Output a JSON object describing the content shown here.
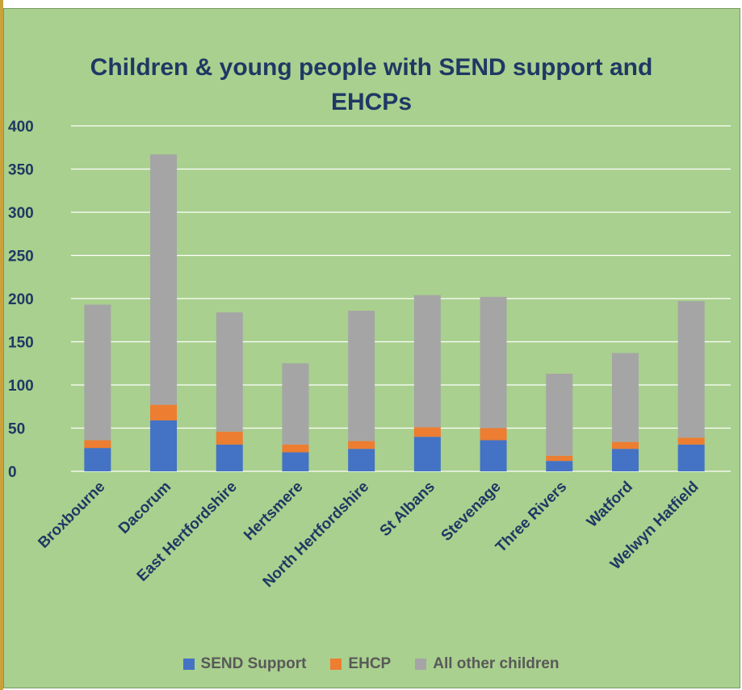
{
  "chart_data": {
    "type": "bar",
    "stacked": true,
    "title": "Children & young people with SEND support and EHCPs",
    "xlabel": "",
    "ylabel": "",
    "ylim": [
      0,
      400
    ],
    "yticks": [
      0,
      50,
      100,
      150,
      200,
      250,
      300,
      350,
      400
    ],
    "ytick_labels": [
      "0",
      "50",
      "100",
      "150",
      "200",
      "250",
      "300",
      "350",
      "400"
    ],
    "grid": true,
    "legend_position": "bottom",
    "background_color": "#a9d08e",
    "categories": [
      "Broxbourne",
      "Dacorum",
      "East Hertfordshire",
      "Hertsmere",
      "North Hertfordshire",
      "St Albans",
      "Stevenage",
      "Three Rivers",
      "Watford",
      "Welwyn Hatfield"
    ],
    "series": [
      {
        "name": "SEND Support",
        "color": "#4472c4",
        "values": [
          27,
          59,
          31,
          22,
          26,
          40,
          36,
          12,
          26,
          31
        ]
      },
      {
        "name": "EHCP",
        "color": "#ed7d31",
        "values": [
          9,
          18,
          15,
          9,
          9,
          11,
          14,
          6,
          8,
          8
        ]
      },
      {
        "name": "All other children",
        "color": "#a5a5a5",
        "values": [
          157,
          290,
          138,
          94,
          151,
          153,
          152,
          95,
          103,
          158
        ]
      }
    ]
  }
}
